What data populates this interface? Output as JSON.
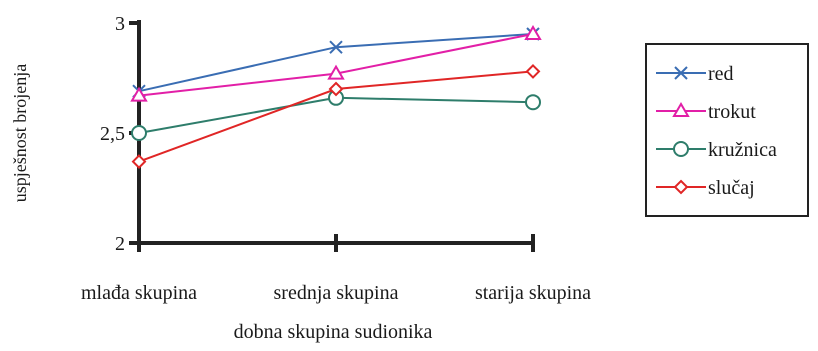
{
  "chart_data": {
    "type": "line",
    "categories": [
      "mlađa skupina",
      "srednja skupina",
      "starija skupina"
    ],
    "xlabel": "dobna skupina sudionika",
    "ylabel": "uspješnost brojenja",
    "ylim": [
      2,
      3
    ],
    "yticks": [
      2,
      2.5,
      3
    ],
    "ytick_labels": [
      "2",
      "2,5",
      "3"
    ],
    "grid": false,
    "legend_position": "right",
    "series": [
      {
        "name": "red",
        "values": [
          2.69,
          2.89,
          2.95
        ],
        "color": "#3a6db3",
        "marker": "x-icon"
      },
      {
        "name": "trokut",
        "values": [
          2.67,
          2.77,
          2.95
        ],
        "color": "#e21fa7",
        "marker": "triangle-icon"
      },
      {
        "name": "kružnica",
        "values": [
          2.5,
          2.66,
          2.64
        ],
        "color": "#2e7d6b",
        "marker": "circle-icon"
      },
      {
        "name": "slučaj",
        "values": [
          2.37,
          2.7,
          2.78
        ],
        "color": "#e02626",
        "marker": "diamond-icon"
      }
    ]
  }
}
